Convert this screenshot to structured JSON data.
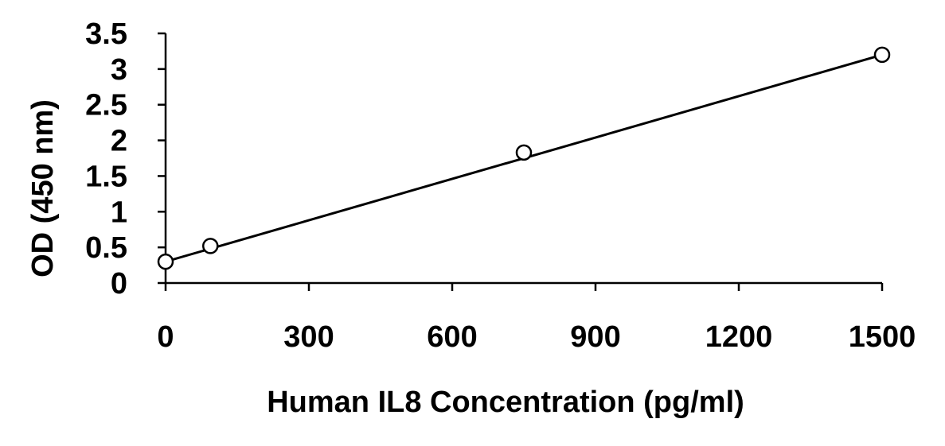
{
  "chart_data": {
    "type": "scatter",
    "title": "",
    "xlabel": "Human IL8 Concentration (pg/ml)",
    "ylabel": "OD (450 nm)",
    "xlim": [
      0,
      1500
    ],
    "ylim": [
      0,
      3.5
    ],
    "xticks": [
      "0",
      "300",
      "600",
      "900",
      "1200",
      "1500"
    ],
    "yticks": [
      "0",
      "0.5",
      "1",
      "1.5",
      "2",
      "2.5",
      "3",
      "3.5"
    ],
    "grid": false,
    "legend": "none",
    "series": [
      {
        "x": [
          0,
          93.75,
          750,
          1500
        ],
        "y": [
          0.3,
          0.52,
          1.83,
          3.2
        ],
        "marker": "open-circle",
        "color": "#000000"
      }
    ],
    "fit_line": {
      "x": [
        0,
        1500
      ],
      "y": [
        0.3,
        3.2
      ]
    }
  }
}
